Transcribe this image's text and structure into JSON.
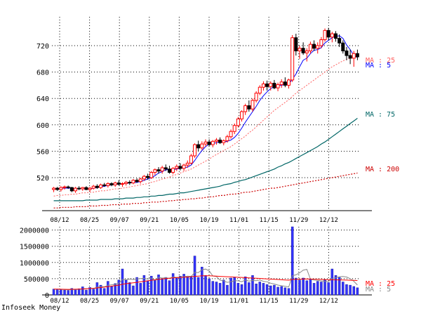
{
  "footer_label": "Infoseek Money",
  "colors": {
    "up": "#ff0000",
    "down": "#000000",
    "ma5": "#0000ff",
    "ma25": "#ff6060",
    "ma75": "#006666",
    "ma200": "#cc0000",
    "vol_bar": "#3333ff",
    "vol_ma5": "#888888",
    "vol_ma25": "#ff0000",
    "grid": "#000000"
  },
  "chart_data": [
    {
      "type": "candlestick",
      "title": "",
      "xlabel": "",
      "ylabel": "",
      "ylim": [
        470,
        770
      ],
      "yticks": [
        520,
        560,
        600,
        640,
        680,
        720
      ],
      "xticks": [
        "08/12",
        "08/25",
        "09/07",
        "09/21",
        "10/05",
        "10/19",
        "11/01",
        "11/15",
        "11/29",
        "12/12"
      ],
      "grid": true,
      "legend": [
        {
          "text": "MA : 25",
          "series": "MA25",
          "color": "#ff6060"
        },
        {
          "text": "MA : 5",
          "series": "MA5",
          "color": "#0000ff"
        },
        {
          "text": "MA : 75",
          "series": "MA75",
          "color": "#006666"
        },
        {
          "text": "MA : 200",
          "series": "MA200",
          "color": "#cc0000"
        }
      ],
      "candles": [
        [
          502,
          506,
          498,
          504
        ],
        [
          504,
          506,
          500,
          502
        ],
        [
          502,
          507,
          499,
          505
        ],
        [
          505,
          508,
          502,
          506
        ],
        [
          506,
          508,
          503,
          505
        ],
        [
          505,
          506,
          498,
          500
        ],
        [
          500,
          506,
          497,
          504
        ],
        [
          504,
          507,
          501,
          503
        ],
        [
          503,
          506,
          500,
          505
        ],
        [
          505,
          507,
          501,
          502
        ],
        [
          502,
          506,
          499,
          504
        ],
        [
          504,
          509,
          502,
          507
        ],
        [
          507,
          510,
          503,
          505
        ],
        [
          505,
          511,
          503,
          509
        ],
        [
          509,
          512,
          506,
          508
        ],
        [
          508,
          513,
          505,
          511
        ],
        [
          511,
          513,
          507,
          509
        ],
        [
          509,
          514,
          506,
          512
        ],
        [
          512,
          516,
          508,
          510
        ],
        [
          510,
          513,
          506,
          511
        ],
        [
          511,
          515,
          508,
          513
        ],
        [
          513,
          516,
          509,
          512
        ],
        [
          512,
          518,
          510,
          516
        ],
        [
          516,
          519,
          512,
          514
        ],
        [
          514,
          520,
          511,
          518
        ],
        [
          518,
          524,
          515,
          522
        ],
        [
          522,
          526,
          517,
          520
        ],
        [
          520,
          530,
          518,
          528
        ],
        [
          528,
          534,
          524,
          532
        ],
        [
          532,
          536,
          526,
          530
        ],
        [
          530,
          538,
          526,
          535
        ],
        [
          535,
          540,
          530,
          533
        ],
        [
          533,
          538,
          526,
          528
        ],
        [
          528,
          536,
          525,
          534
        ],
        [
          534,
          540,
          530,
          537
        ],
        [
          537,
          542,
          531,
          534
        ],
        [
          534,
          541,
          530,
          539
        ],
        [
          539,
          546,
          535,
          542
        ],
        [
          542,
          556,
          540,
          553
        ],
        [
          553,
          572,
          550,
          570
        ],
        [
          570,
          576,
          560,
          565
        ],
        [
          565,
          575,
          562,
          571
        ],
        [
          571,
          578,
          567,
          574
        ],
        [
          574,
          578,
          568,
          570
        ],
        [
          570,
          577,
          566,
          575
        ],
        [
          575,
          580,
          570,
          577
        ],
        [
          577,
          581,
          571,
          573
        ],
        [
          573,
          578,
          569,
          576
        ],
        [
          576,
          585,
          573,
          582
        ],
        [
          582,
          593,
          579,
          590
        ],
        [
          590,
          602,
          586,
          599
        ],
        [
          599,
          612,
          596,
          609
        ],
        [
          609,
          622,
          605,
          620
        ],
        [
          620,
          632,
          615,
          629
        ],
        [
          629,
          637,
          620,
          624
        ],
        [
          624,
          640,
          620,
          637
        ],
        [
          637,
          651,
          634,
          648
        ],
        [
          648,
          660,
          645,
          657
        ],
        [
          657,
          666,
          652,
          662
        ],
        [
          662,
          667,
          652,
          658
        ],
        [
          658,
          666,
          652,
          663
        ],
        [
          663,
          668,
          654,
          656
        ],
        [
          656,
          664,
          651,
          661
        ],
        [
          661,
          669,
          656,
          665
        ],
        [
          665,
          672,
          657,
          660
        ],
        [
          660,
          670,
          655,
          668
        ],
        [
          668,
          736,
          665,
          732
        ],
        [
          732,
          738,
          705,
          712
        ],
        [
          712,
          720,
          700,
          716
        ],
        [
          716,
          725,
          706,
          709
        ],
        [
          709,
          716,
          696,
          712
        ],
        [
          712,
          726,
          708,
          722
        ],
        [
          722,
          728,
          712,
          716
        ],
        [
          716,
          725,
          708,
          720
        ],
        [
          720,
          733,
          716,
          729
        ],
        [
          729,
          746,
          726,
          743
        ],
        [
          743,
          747,
          728,
          733
        ],
        [
          733,
          741,
          725,
          738
        ],
        [
          738,
          742,
          726,
          731
        ],
        [
          731,
          737,
          718,
          724
        ],
        [
          724,
          728,
          708,
          712
        ],
        [
          712,
          718,
          698,
          705
        ],
        [
          705,
          714,
          692,
          701
        ],
        [
          701,
          712,
          688,
          708
        ],
        [
          708,
          714,
          698,
          703
        ]
      ],
      "series": [
        {
          "name": "MA5",
          "values": [
            503,
            503,
            504,
            504,
            504,
            504,
            503,
            503,
            503,
            503,
            503,
            504,
            505,
            506,
            507,
            508,
            509,
            510,
            510,
            511,
            511,
            512,
            512,
            513,
            514,
            516,
            518,
            520,
            523,
            527,
            529,
            532,
            532,
            532,
            533,
            534,
            535,
            536,
            539,
            546,
            554,
            561,
            567,
            571,
            572,
            573,
            574,
            574,
            575,
            577,
            581,
            587,
            595,
            604,
            612,
            620,
            628,
            637,
            644,
            650,
            655,
            658,
            659,
            660,
            661,
            662,
            669,
            677,
            688,
            698,
            701,
            708,
            713,
            714,
            717,
            724,
            728,
            732,
            734,
            735,
            731,
            721,
            714,
            705,
            702
          ]
        },
        {
          "name": "MA25",
          "values": [
            492,
            493,
            493,
            494,
            494,
            495,
            495,
            496,
            497,
            497,
            498,
            498,
            499,
            500,
            500,
            501,
            502,
            503,
            503,
            504,
            505,
            506,
            507,
            508,
            509,
            510,
            511,
            513,
            514,
            516,
            518,
            519,
            521,
            523,
            525,
            527,
            529,
            531,
            533,
            536,
            539,
            542,
            545,
            548,
            552,
            555,
            558,
            561,
            564,
            567,
            571,
            575,
            579,
            583,
            588,
            592,
            597,
            602,
            607,
            612,
            617,
            622,
            626,
            630,
            634,
            638,
            643,
            648,
            652,
            656,
            660,
            664,
            668,
            672,
            676,
            680,
            684,
            688,
            691,
            694,
            697,
            699,
            701,
            703,
            705
          ]
        },
        {
          "name": "MA75",
          "values": [
            485,
            485,
            485,
            485,
            485,
            485,
            485,
            485,
            485,
            486,
            486,
            486,
            486,
            487,
            487,
            487,
            487,
            488,
            488,
            488,
            489,
            489,
            489,
            490,
            490,
            491,
            491,
            492,
            492,
            493,
            493,
            494,
            495,
            495,
            496,
            497,
            497,
            498,
            499,
            500,
            501,
            502,
            503,
            504,
            505,
            506,
            507,
            509,
            510,
            511,
            513,
            514,
            516,
            517,
            519,
            521,
            523,
            525,
            527,
            529,
            531,
            533,
            536,
            538,
            541,
            543,
            546,
            549,
            552,
            555,
            558,
            561,
            564,
            567,
            571,
            574,
            578,
            582,
            586,
            590,
            594,
            598,
            602,
            606,
            610
          ]
        },
        {
          "name": "MA200",
          "values": [
            474,
            474,
            475,
            475,
            475,
            475,
            476,
            476,
            476,
            476,
            477,
            477,
            477,
            478,
            478,
            478,
            479,
            479,
            479,
            480,
            480,
            480,
            481,
            481,
            481,
            482,
            482,
            483,
            483,
            483,
            484,
            484,
            485,
            485,
            486,
            486,
            487,
            487,
            488,
            488,
            489,
            489,
            490,
            491,
            491,
            492,
            493,
            493,
            494,
            495,
            495,
            496,
            497,
            498,
            498,
            499,
            500,
            501,
            502,
            503,
            504,
            504,
            505,
            506,
            507,
            508,
            509,
            510,
            511,
            512,
            513,
            514,
            515,
            516,
            517,
            518,
            519,
            520,
            521,
            522,
            523,
            524,
            525,
            526,
            527
          ]
        }
      ]
    },
    {
      "type": "bar",
      "title": "",
      "xlabel": "",
      "ylabel": "",
      "ylim": [
        0,
        2100000
      ],
      "yticks": [
        "0",
        "500000",
        "1000000",
        "1500000",
        "2000000"
      ],
      "xticks": [
        "08/12",
        "08/25",
        "09/07",
        "09/21",
        "10/05",
        "10/19",
        "11/01",
        "11/15",
        "11/29",
        "12/12"
      ],
      "grid": true,
      "legend": [
        {
          "text": "MA : 25",
          "series": "MA25",
          "color": "#ff0000"
        },
        {
          "text": "MA : 5",
          "series": "MA5",
          "color": "#888888"
        }
      ],
      "volume": [
        180000,
        170000,
        160000,
        150000,
        140000,
        200000,
        170000,
        190000,
        250000,
        150000,
        230000,
        180000,
        380000,
        300000,
        200000,
        420000,
        260000,
        350000,
        460000,
        800000,
        460000,
        380000,
        280000,
        540000,
        360000,
        600000,
        440000,
        580000,
        460000,
        620000,
        500000,
        540000,
        440000,
        660000,
        520000,
        580000,
        640000,
        560000,
        580000,
        1200000,
        540000,
        860000,
        600000,
        500000,
        420000,
        400000,
        360000,
        460000,
        300000,
        520000,
        540000,
        360000,
        320000,
        560000,
        380000,
        600000,
        340000,
        400000,
        360000,
        320000,
        280000,
        300000,
        240000,
        260000,
        220000,
        200000,
        2100000,
        520000,
        460000,
        520000,
        440000,
        480000,
        360000,
        420000,
        400000,
        460000,
        380000,
        800000,
        600000,
        540000,
        400000,
        320000,
        300000,
        260000,
        220000
      ],
      "series": [
        {
          "name": "MA5",
          "values": [
            180000,
            175000,
            170000,
            165000,
            160000,
            164000,
            166000,
            172000,
            186000,
            192000,
            198000,
            200000,
            236000,
            258000,
            252000,
            298000,
            312000,
            322000,
            358000,
            478000,
            466000,
            490000,
            476000,
            494000,
            504000,
            512000,
            488000,
            520000,
            448000,
            540000,
            520000,
            528000,
            512000,
            552000,
            540000,
            552000,
            560000,
            580000,
            568000,
            696000,
            688000,
            780000,
            796000,
            740000,
            584000,
            564000,
            456000,
            428000,
            388000,
            408000,
            436000,
            436000,
            408000,
            460000,
            424000,
            444000,
            440000,
            460000,
            420000,
            404000,
            360000,
            336000,
            304000,
            284000,
            264000,
            246000,
            592000,
            620000,
            680000,
            764000,
            788000,
            488000,
            456000,
            448000,
            432000,
            420000,
            412000,
            504000,
            532000,
            560000,
            568000,
            552000,
            500000,
            420000,
            306000
          ]
        },
        {
          "name": "MA25",
          "values": [
            180000,
            178000,
            176000,
            174000,
            172000,
            174000,
            176000,
            180000,
            184000,
            190000,
            196000,
            204000,
            216000,
            228000,
            240000,
            256000,
            270000,
            286000,
            302000,
            330000,
            346000,
            360000,
            372000,
            388000,
            404000,
            420000,
            436000,
            452000,
            466000,
            480000,
            492000,
            504000,
            514000,
            524000,
            532000,
            540000,
            546000,
            552000,
            558000,
            574000,
            580000,
            588000,
            592000,
            590000,
            584000,
            578000,
            572000,
            566000,
            560000,
            556000,
            550000,
            544000,
            538000,
            532000,
            526000,
            520000,
            514000,
            508000,
            500000,
            494000,
            488000,
            482000,
            476000,
            468000,
            460000,
            454000,
            476000,
            482000,
            486000,
            490000,
            492000,
            490000,
            486000,
            482000,
            478000,
            474000,
            470000,
            468000,
            466000,
            464000,
            460000,
            456000,
            452000,
            448000,
            444000
          ]
        }
      ]
    }
  ]
}
